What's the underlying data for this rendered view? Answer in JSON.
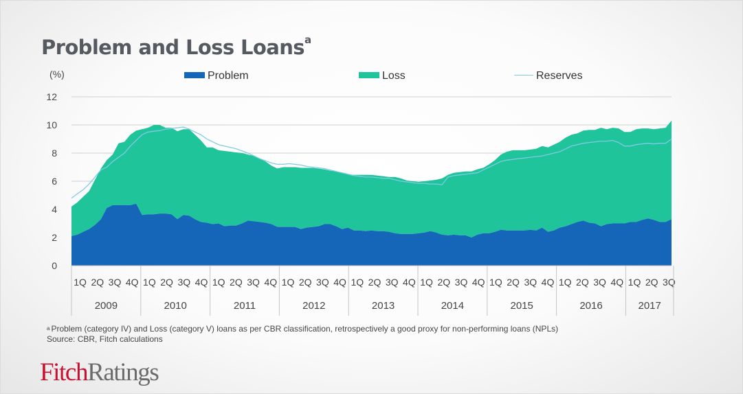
{
  "title": "Problem and Loss Loans",
  "title_superscript": "a",
  "footnote": {
    "marker": "a",
    "text": "Problem  (category IV) and Loss (category V) loans as per CBR classification, retrospectively  a good proxy  for non-performing  loans (NPLs)",
    "source": "Source: CBR, Fitch calculations"
  },
  "logo": {
    "part1": "Fitch",
    "part2": "Ratings"
  },
  "chart_data": {
    "type": "area",
    "ylabel": "(%)",
    "ylim": [
      0,
      12
    ],
    "yticks": [
      "0",
      "2",
      "4",
      "6",
      "8",
      "10",
      "12"
    ],
    "grid": true,
    "legend_position": "top",
    "colors": {
      "Problem": "#1565b8",
      "Loss": "#20c49a",
      "Reserves": "#7fcbe6"
    },
    "quarter_labels": [
      "1Q",
      "2Q",
      "3Q",
      "4Q",
      "1Q",
      "2Q",
      "3Q",
      "4Q",
      "1Q",
      "2Q",
      "3Q",
      "4Q",
      "1Q",
      "2Q",
      "3Q",
      "4Q",
      "1Q",
      "2Q",
      "3Q",
      "4Q",
      "1Q",
      "2Q",
      "3Q",
      "4Q",
      "1Q",
      "2Q",
      "3Q",
      "4Q",
      "1Q",
      "2Q",
      "3Q",
      "4Q",
      "1Q",
      "2Q",
      "3Q"
    ],
    "years": [
      "2009",
      "2010",
      "2011",
      "2012",
      "2013",
      "2014",
      "2015",
      "2016",
      "2017"
    ],
    "x_start": "2009-01",
    "x_end": "2017-09",
    "series": [
      {
        "name": "Problem",
        "stack": "lower",
        "values": [
          2.1,
          2.2,
          2.4,
          2.6,
          2.9,
          3.3,
          4.1,
          4.3,
          4.3,
          4.3,
          4.3,
          4.4,
          3.6,
          3.65,
          3.65,
          3.7,
          3.7,
          3.65,
          3.3,
          3.6,
          3.55,
          3.3,
          3.1,
          3.05,
          2.95,
          3.0,
          2.8,
          2.85,
          2.85,
          3.0,
          3.2,
          3.15,
          3.1,
          3.05,
          2.95,
          2.75,
          2.75,
          2.75,
          2.75,
          2.6,
          2.7,
          2.75,
          2.8,
          2.95,
          2.95,
          2.8,
          2.6,
          2.7,
          2.5,
          2.5,
          2.45,
          2.5,
          2.45,
          2.45,
          2.4,
          2.3,
          2.25,
          2.25,
          2.25,
          2.3,
          2.35,
          2.45,
          2.35,
          2.2,
          2.15,
          2.2,
          2.15,
          2.15,
          2.0,
          2.2,
          2.3,
          2.3,
          2.4,
          2.55,
          2.5,
          2.5,
          2.5,
          2.5,
          2.55,
          2.5,
          2.7,
          2.4,
          2.5,
          2.7,
          2.8,
          2.95,
          3.1,
          3.2,
          3.05,
          3.0,
          2.8,
          2.95,
          3.0,
          3.0,
          3.0,
          3.1,
          3.1,
          3.25,
          3.35,
          3.25,
          3.1,
          3.1,
          3.3
        ]
      },
      {
        "name": "Loss",
        "stack": "upper_total",
        "values": [
          4.2,
          4.5,
          4.9,
          5.3,
          6.1,
          6.9,
          7.5,
          7.9,
          8.7,
          8.8,
          9.3,
          9.6,
          9.7,
          9.8,
          10.0,
          10.0,
          9.8,
          9.8,
          9.55,
          9.7,
          9.7,
          9.3,
          8.9,
          8.4,
          8.4,
          8.2,
          8.15,
          8.1,
          8.05,
          8.0,
          7.9,
          7.8,
          7.6,
          7.4,
          7.1,
          6.9,
          7.0,
          7.0,
          7.0,
          6.95,
          6.95,
          6.95,
          6.9,
          6.85,
          6.75,
          6.7,
          6.6,
          6.5,
          6.45,
          6.45,
          6.45,
          6.45,
          6.4,
          6.35,
          6.3,
          6.3,
          6.2,
          6.05,
          6.0,
          5.95,
          6.0,
          6.05,
          6.1,
          6.2,
          6.45,
          6.6,
          6.65,
          6.7,
          6.7,
          6.85,
          6.95,
          7.2,
          7.5,
          7.9,
          8.1,
          8.2,
          8.2,
          8.2,
          8.25,
          8.3,
          8.5,
          8.4,
          8.6,
          8.8,
          9.1,
          9.3,
          9.4,
          9.6,
          9.65,
          9.65,
          9.8,
          9.7,
          9.8,
          9.75,
          9.5,
          9.5,
          9.7,
          9.75,
          9.75,
          9.7,
          9.75,
          9.8,
          10.3
        ]
      },
      {
        "name": "Reserves",
        "stack": "line",
        "values": [
          4.8,
          5.1,
          5.4,
          5.8,
          6.3,
          6.8,
          7.0,
          7.4,
          7.7,
          8.0,
          8.5,
          8.9,
          9.3,
          9.5,
          9.55,
          9.6,
          9.7,
          9.75,
          9.8,
          9.85,
          9.7,
          9.5,
          9.3,
          9.0,
          8.8,
          8.6,
          8.5,
          8.4,
          8.3,
          8.15,
          8.0,
          7.8,
          7.6,
          7.45,
          7.3,
          7.2,
          7.2,
          7.25,
          7.2,
          7.15,
          7.05,
          7.0,
          6.95,
          6.9,
          6.8,
          6.7,
          6.6,
          6.5,
          6.4,
          6.35,
          6.3,
          6.3,
          6.25,
          6.2,
          6.2,
          6.1,
          6.0,
          5.95,
          5.9,
          5.85,
          5.85,
          5.8,
          5.8,
          5.75,
          6.3,
          6.4,
          6.45,
          6.5,
          6.55,
          6.6,
          6.8,
          7.0,
          7.2,
          7.4,
          7.5,
          7.55,
          7.6,
          7.65,
          7.7,
          7.75,
          7.8,
          7.9,
          8.0,
          8.1,
          8.3,
          8.5,
          8.6,
          8.7,
          8.75,
          8.8,
          8.85,
          8.85,
          8.9,
          8.75,
          8.5,
          8.5,
          8.6,
          8.65,
          8.7,
          8.65,
          8.7,
          8.7,
          9.0
        ]
      }
    ]
  }
}
